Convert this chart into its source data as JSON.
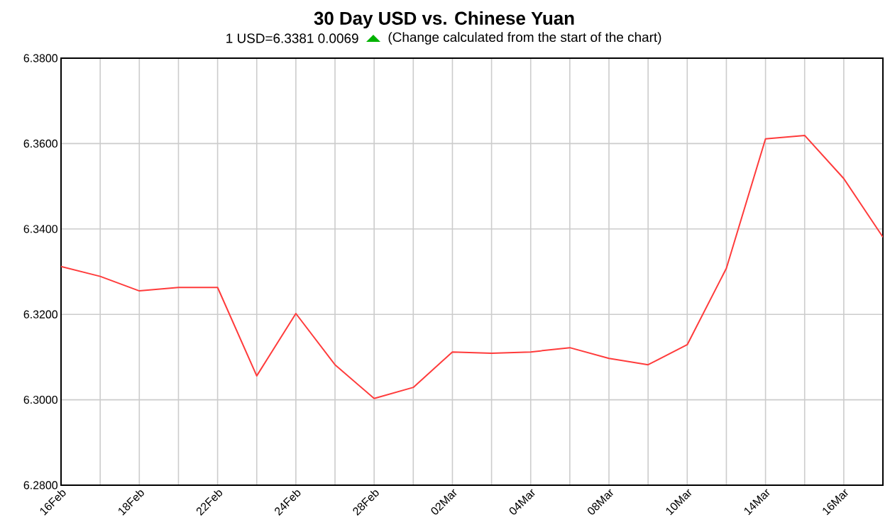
{
  "chart_data": {
    "type": "line",
    "title": "30 Day USD vs. Chinese Yuan",
    "subtitle": "1 USD=6.3381  0.0069",
    "annotations": [
      "(Change calculated from the start of the chart)"
    ],
    "categories": [
      "16Feb",
      null,
      "18Feb",
      null,
      "22Feb",
      null,
      "24Feb",
      null,
      "28Feb",
      null,
      "02Mar",
      null,
      "04Mar",
      null,
      "08Mar",
      null,
      "10Mar",
      null,
      "14Mar",
      null,
      "16Mar",
      null
    ],
    "series": [
      {
        "color": "#ff3b3b",
        "values": [
          6.3312,
          6.3289,
          6.3255,
          6.3263,
          6.3263,
          6.3056,
          6.3202,
          6.3082,
          6.3003,
          6.3029,
          6.3112,
          6.3109,
          6.3112,
          6.3122,
          6.3097,
          6.3082,
          6.3129,
          6.3308,
          6.3611,
          6.3619,
          6.3518,
          6.3381
        ]
      }
    ],
    "ylim": [
      6.28,
      6.38
    ],
    "yticks": [
      {
        "value": 6.28,
        "label": "6.2800"
      },
      {
        "value": 6.3,
        "label": "6.3000"
      },
      {
        "value": 6.32,
        "label": "6.3200"
      },
      {
        "value": 6.34,
        "label": "6.3400"
      },
      {
        "value": 6.36,
        "label": "6.3600"
      },
      {
        "value": 6.38,
        "label": "6.3800"
      }
    ],
    "grid": true,
    "marker": "none",
    "line_style": "solid"
  }
}
